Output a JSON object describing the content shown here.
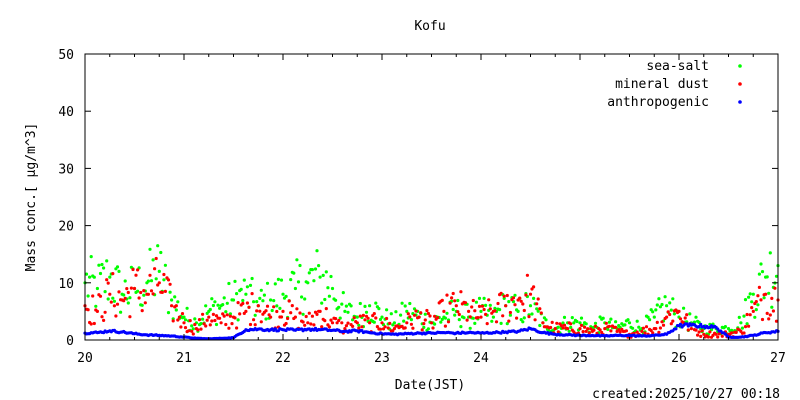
{
  "chart_data": {
    "type": "scatter",
    "title": "Kofu",
    "xlabel": "Date(JST)",
    "ylabel": "Mass conc.[ μg/m^3]",
    "footer": "created:2025/10/27 00:18",
    "xlim": [
      20,
      27
    ],
    "ylim": [
      0,
      50
    ],
    "xticks": [
      "20",
      "21",
      "22",
      "23",
      "24",
      "25",
      "26",
      "27"
    ],
    "yticks": [
      "0",
      "10",
      "20",
      "30",
      "40",
      "50"
    ],
    "legend_position": "top-right",
    "x_start": 20,
    "x_step": 0.125,
    "series": [
      {
        "name": "sea-salt",
        "color": "#00ff00",
        "values": [
          10,
          9,
          11,
          8,
          9,
          10,
          12,
          7,
          4,
          3,
          5,
          6,
          7,
          8,
          6,
          7,
          8,
          9,
          10,
          11,
          9,
          5,
          4,
          6,
          4,
          3,
          5,
          4,
          3,
          4,
          5,
          4,
          5,
          4,
          6,
          5,
          6,
          3,
          2,
          3,
          3,
          2,
          3,
          2,
          3,
          2,
          4,
          6,
          4,
          3,
          2,
          2,
          2,
          3,
          8,
          11,
          13
        ]
      },
      {
        "name": "mineral dust",
        "color": "#ff0000",
        "values": [
          6,
          5,
          8,
          7,
          9,
          8,
          10,
          6,
          3,
          2,
          4,
          3,
          4,
          5,
          6,
          4,
          5,
          4,
          3,
          5,
          3,
          2,
          3,
          3,
          3,
          2,
          3,
          4,
          3,
          5,
          6,
          5,
          4,
          5,
          6,
          7,
          8,
          3,
          2,
          2,
          2,
          1.5,
          2,
          1.5,
          1,
          1.5,
          2,
          4,
          5,
          2,
          1,
          1,
          1,
          1.5,
          5,
          8,
          7
        ]
      },
      {
        "name": "anthropogenic",
        "color": "#0000ff",
        "values": [
          1.2,
          1.3,
          1.6,
          1.4,
          1.1,
          0.9,
          0.8,
          0.7,
          0.5,
          0.3,
          0.2,
          0.3,
          0.4,
          1.8,
          1.9,
          1.8,
          1.8,
          1.7,
          1.9,
          1.8,
          1.7,
          1.5,
          1.6,
          1.3,
          1.1,
          1.0,
          1.1,
          1.2,
          1.2,
          1.3,
          1.2,
          1.3,
          1.2,
          1.3,
          1.4,
          1.5,
          2.0,
          1.3,
          1.0,
          0.9,
          0.8,
          0.8,
          0.7,
          0.8,
          0.8,
          0.7,
          0.8,
          1.0,
          2.5,
          2.6,
          2.4,
          2.2,
          0.5,
          0.5,
          0.8,
          1.3,
          1.5
        ]
      }
    ]
  }
}
